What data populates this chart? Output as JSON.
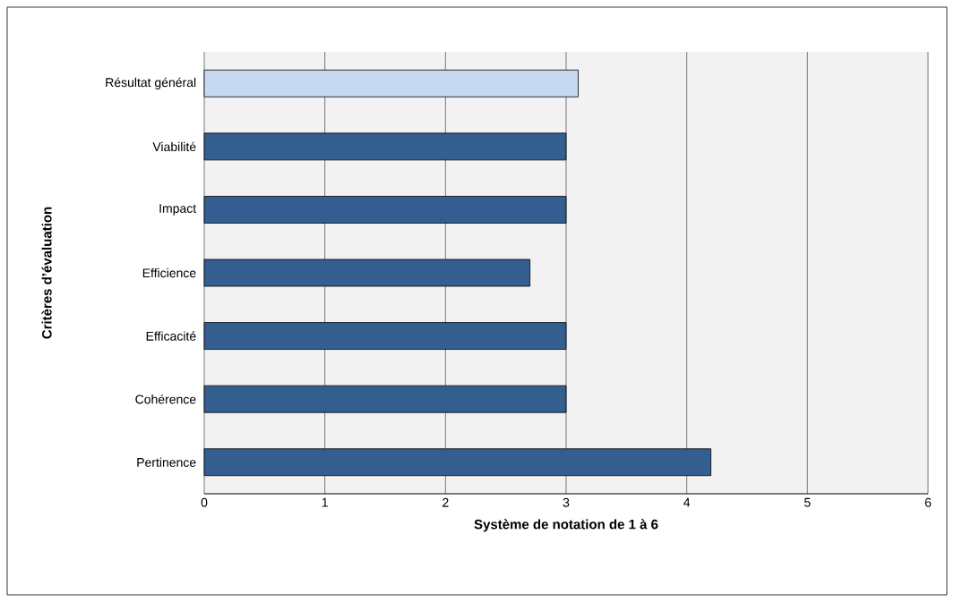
{
  "chart_data": {
    "type": "bar",
    "orientation": "horizontal",
    "categories": [
      "Résultat général",
      "Viabilité",
      "Impact",
      "Efficience",
      "Efficacité",
      "Cohérence",
      "Pertinence"
    ],
    "values": [
      3.1,
      3,
      3,
      2.7,
      3,
      3,
      4.2
    ],
    "colors": [
      "#c6d9f1",
      "#345e8f",
      "#345e8f",
      "#345e8f",
      "#345e8f",
      "#345e8f",
      "#345e8f"
    ],
    "xlim": [
      0,
      6
    ],
    "xticks": [
      0,
      1,
      2,
      3,
      4,
      5,
      6
    ],
    "grid": "x",
    "xlabel": "Système de notation de 1 à 6",
    "ylabel": "Critères d’évaluation"
  }
}
